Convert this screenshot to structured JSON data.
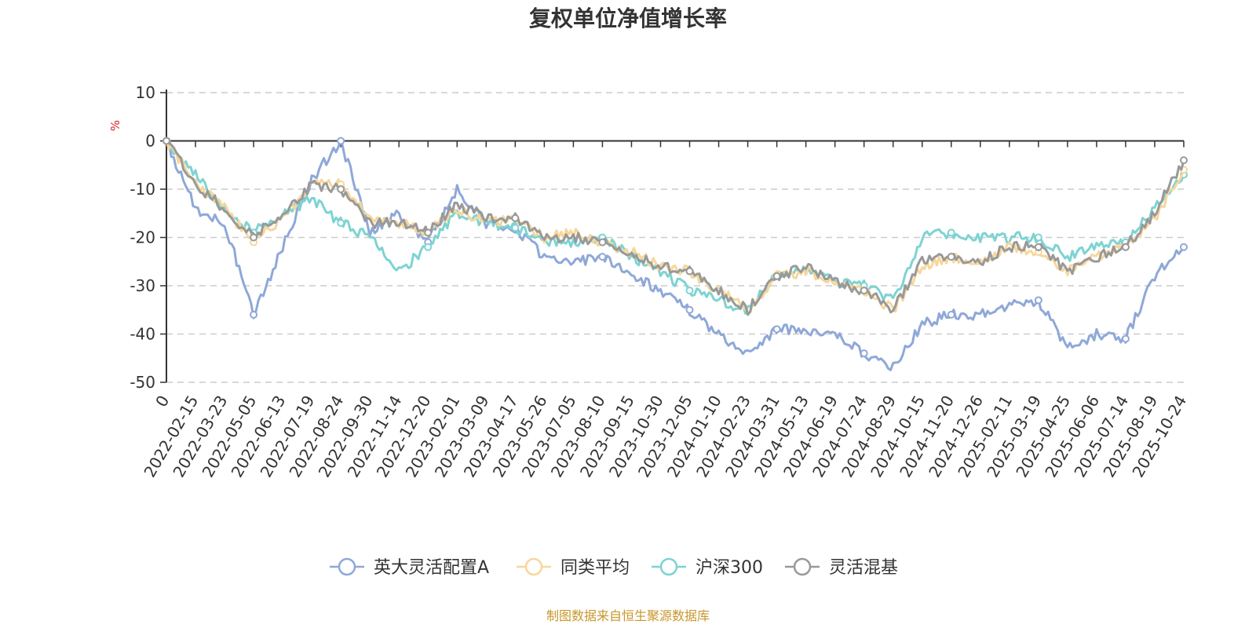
{
  "chart_data": {
    "type": "line",
    "title": "复权单位净值增长率",
    "ylabel": "%",
    "xlabel": "",
    "ylim": [
      -50,
      10
    ],
    "yticks": [
      10,
      0,
      -10,
      -20,
      -30,
      -40,
      -50
    ],
    "categories": [
      "0",
      "2022-02-15",
      "2022-03-23",
      "2022-05-05",
      "2022-06-13",
      "2022-07-19",
      "2022-08-24",
      "2022-09-30",
      "2022-11-14",
      "2022-12-20",
      "2023-02-01",
      "2023-03-09",
      "2023-04-17",
      "2023-05-26",
      "2023-07-05",
      "2023-08-10",
      "2023-09-15",
      "2023-10-30",
      "2023-12-05",
      "2024-01-10",
      "2024-02-23",
      "2024-03-31",
      "2024-05-13",
      "2024-06-19",
      "2024-07-24",
      "2024-08-29",
      "2024-10-15",
      "2024-11-20",
      "2024-12-26",
      "2025-02-11",
      "2025-03-19",
      "2025-04-25",
      "2025-06-06",
      "2025-07-14",
      "2025-08-19",
      "2025-10-24"
    ],
    "grid": true,
    "legend_position": "bottom-center",
    "series": [
      {
        "name": "英大灵活配置A",
        "color": "#8fa8d8",
        "values": [
          0,
          -14,
          -17,
          -36,
          -22,
          -8,
          0,
          -19,
          -15,
          -21,
          -10,
          -17,
          -18,
          -24,
          -25,
          -24,
          -28,
          -31,
          -35,
          -40,
          -44,
          -39,
          -39,
          -40,
          -44,
          -47,
          -38,
          -36,
          -36,
          -34,
          -33,
          -43,
          -40,
          -41,
          -28,
          -22
        ]
      },
      {
        "name": "同类平均",
        "color": "#f7d79a",
        "values": [
          0,
          -9,
          -14,
          -21,
          -16,
          -9,
          -9,
          -16,
          -17,
          -19,
          -14,
          -17,
          -16,
          -20,
          -19,
          -21,
          -23,
          -26,
          -27,
          -31,
          -35,
          -28,
          -27,
          -29,
          -31,
          -35,
          -26,
          -24,
          -25,
          -22,
          -23,
          -27,
          -24,
          -22,
          -16,
          -6
        ]
      },
      {
        "name": "沪深300",
        "color": "#7ed3d3",
        "values": [
          0,
          -7,
          -14,
          -19,
          -15,
          -12,
          -17,
          -20,
          -27,
          -22,
          -15,
          -17,
          -18,
          -21,
          -21,
          -20,
          -24,
          -27,
          -31,
          -33,
          -35,
          -28,
          -27,
          -29,
          -30,
          -33,
          -20,
          -19,
          -20,
          -20,
          -20,
          -24,
          -22,
          -21,
          -14,
          -7
        ]
      },
      {
        "name": "灵活混基",
        "color": "#999999",
        "values": [
          0,
          -9,
          -14,
          -20,
          -15,
          -9,
          -10,
          -17,
          -17,
          -19,
          -13,
          -16,
          -16,
          -20,
          -20,
          -21,
          -23,
          -26,
          -27,
          -31,
          -35,
          -28,
          -26,
          -29,
          -31,
          -35,
          -25,
          -24,
          -25,
          -22,
          -22,
          -27,
          -24,
          -22,
          -15,
          -4
        ]
      }
    ]
  },
  "source_text": "制图数据来自恒生聚源数据库"
}
